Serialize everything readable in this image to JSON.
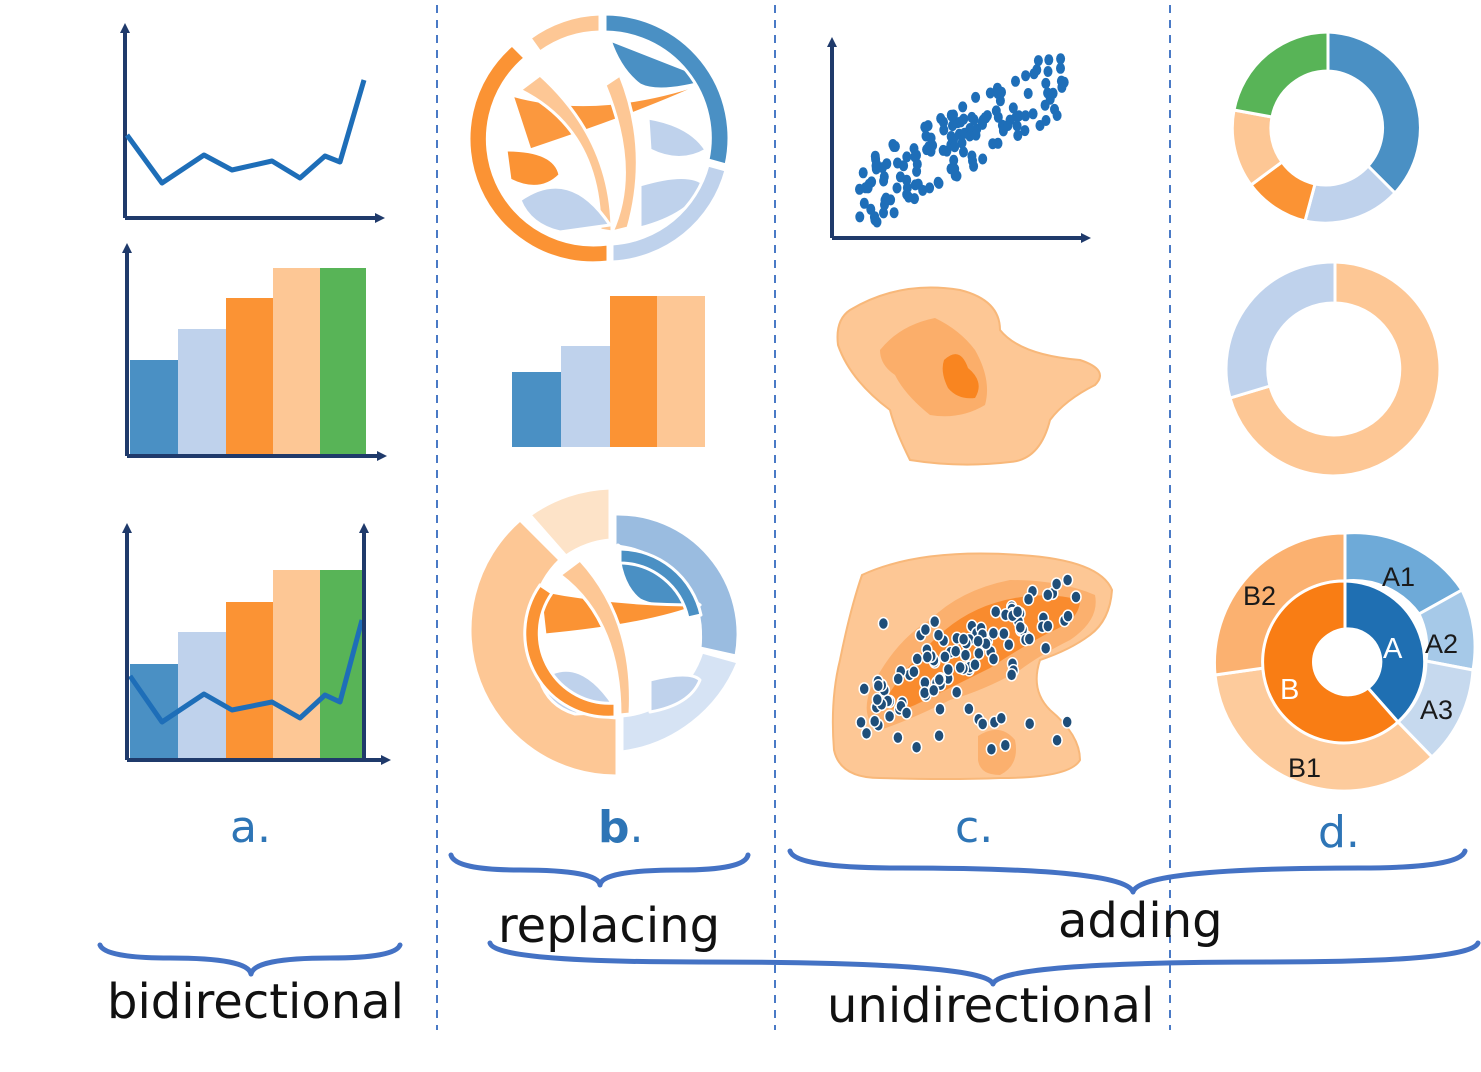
{
  "panels": {
    "a": {
      "label": "a."
    },
    "b": {
      "label_bold": "b",
      "label_rest": "."
    },
    "c": {
      "label": "c."
    },
    "d": {
      "label": "d.",
      "sunburst": {
        "inner": [
          "A",
          "B"
        ],
        "outer": [
          "A1",
          "A2",
          "A3",
          "B1",
          "B2"
        ]
      }
    }
  },
  "groups": {
    "bidirectional": "bidirectional",
    "replacing": "replacing",
    "adding": "adding",
    "unidirectional": "unidirectional"
  },
  "colors": {
    "blue_dark": "#4a90c4",
    "blue_light": "#bfd2ec",
    "orange": "#fb9334",
    "orange_light": "#fdc795",
    "green": "#58b457",
    "line": "#1e6eb8",
    "axis": "#1f3a6b",
    "divider": "#4a7ac6",
    "brace": "#4472c4"
  }
}
